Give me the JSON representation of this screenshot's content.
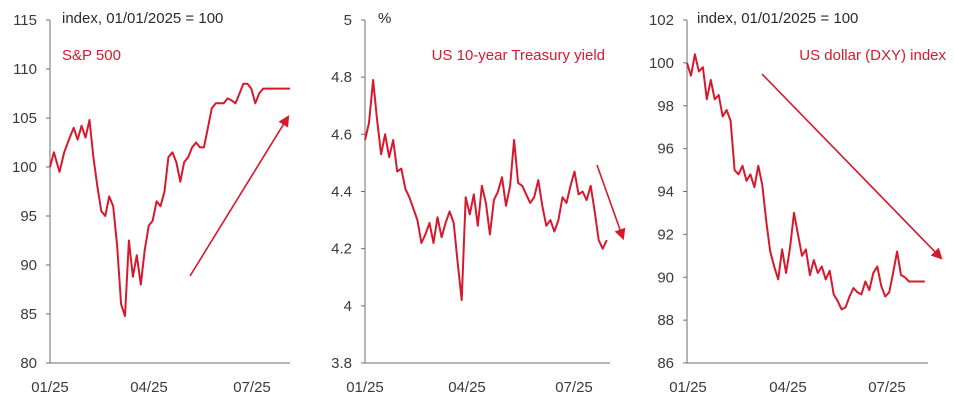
{
  "colors": {
    "series": "#d7192d",
    "axis": "#6e6e6e",
    "text": "#3a3a3a"
  },
  "chart_data": [
    {
      "type": "line",
      "title": "S&P 500",
      "unit_label": "index, 01/01/2025 = 100",
      "ylim": [
        80,
        115
      ],
      "yticks": [
        "115",
        "110",
        "105",
        "100",
        "95",
        "90",
        "85",
        "80"
      ],
      "xticks": [
        "01/25",
        "04/25",
        "07/25"
      ],
      "grid": false,
      "trend_arrow": "up",
      "series": [
        {
          "x": [
            0,
            0.5,
            1.2,
            1.8,
            2.5,
            3,
            3.5,
            4,
            4.5,
            5,
            5.5,
            6,
            6.5,
            7,
            7.5,
            8,
            8.5,
            9,
            9.5,
            10,
            10.5,
            11,
            11.5,
            12,
            12.5,
            13,
            13.5,
            14,
            14.5,
            15,
            15.5,
            16,
            16.5,
            17,
            17.5,
            18,
            18.5,
            19,
            19.5,
            20,
            20.5,
            21,
            21.5,
            22,
            22.5,
            23,
            23.5,
            24,
            24.5,
            25,
            25.5,
            26,
            26.5,
            27,
            27.5,
            28,
            28.5,
            29,
            29.5,
            30,
            30.4
          ],
          "values": [
            100,
            101.5,
            99.5,
            101.5,
            103,
            104,
            102.8,
            104.2,
            103,
            104.8,
            101,
            98,
            95.5,
            95,
            97,
            96,
            92,
            86,
            84.8,
            92.5,
            88.8,
            91,
            88,
            91.5,
            94,
            94.5,
            96.5,
            96,
            97.5,
            101,
            101.5,
            100.5,
            98.5,
            100.5,
            101,
            102,
            102.5,
            102,
            102,
            104,
            106,
            106.5,
            106.5,
            106.5,
            107,
            106.8,
            106.5,
            107.5,
            108.5,
            108.5,
            108,
            106.5,
            107.5,
            108,
            108,
            108,
            108,
            108,
            108,
            108,
            108
          ]
        }
      ]
    },
    {
      "type": "line",
      "title": "US 10-year Treasury yield",
      "unit_label": "%",
      "ylim": [
        3.8,
        5
      ],
      "yticks": [
        "5",
        "4.8",
        "4.6",
        "4.4",
        "4.2",
        "4",
        "3.8"
      ],
      "xticks": [
        "01/25",
        "04/25",
        "07/25"
      ],
      "grid": false,
      "trend_arrow": "down",
      "series": [
        {
          "x": [
            0,
            0.5,
            1,
            1.5,
            2,
            2.5,
            3,
            3.5,
            4,
            4.5,
            5,
            5.5,
            6,
            6.5,
            7,
            7.5,
            8,
            8.5,
            9,
            9.5,
            10,
            10.5,
            11,
            11.5,
            12,
            12.5,
            13,
            13.5,
            14,
            14.5,
            15,
            15.5,
            16,
            16.5,
            17,
            17.5,
            18,
            18.5,
            19,
            19.5,
            20,
            20.5,
            21,
            21.5,
            22,
            22.5,
            23,
            23.5,
            24,
            24.5,
            25,
            25.5,
            26,
            26.5,
            27,
            27.5,
            28,
            28.5,
            29,
            29.5,
            30
          ],
          "values": [
            4.58,
            4.64,
            4.79,
            4.65,
            4.53,
            4.6,
            4.52,
            4.58,
            4.47,
            4.48,
            4.41,
            4.38,
            4.34,
            4.3,
            4.22,
            4.25,
            4.29,
            4.22,
            4.31,
            4.24,
            4.29,
            4.33,
            4.29,
            4.15,
            4.02,
            4.38,
            4.32,
            4.39,
            4.28,
            4.42,
            4.36,
            4.25,
            4.37,
            4.4,
            4.45,
            4.35,
            4.42,
            4.58,
            4.43,
            4.42,
            4.39,
            4.36,
            4.38,
            4.44,
            4.35,
            4.28,
            4.3,
            4.26,
            4.3,
            4.38,
            4.36,
            4.42,
            4.47,
            4.39,
            4.4,
            4.37,
            4.42,
            4.33,
            4.23,
            4.2,
            4.23
          ]
        }
      ]
    },
    {
      "type": "line",
      "title": "US dollar (DXY) index",
      "unit_label": "index, 01/01/2025 = 100",
      "ylim": [
        86,
        102
      ],
      "yticks": [
        "102",
        "100",
        "98",
        "96",
        "94",
        "92",
        "90",
        "88",
        "86"
      ],
      "xticks": [
        "01/25",
        "04/25",
        "07/25"
      ],
      "grid": false,
      "trend_arrow": "down",
      "series": [
        {
          "x": [
            0,
            0.5,
            1,
            1.5,
            2,
            2.5,
            3,
            3.5,
            4,
            4.5,
            5,
            5.5,
            6,
            6.5,
            7,
            7.5,
            8,
            8.5,
            9,
            9.5,
            10,
            10.5,
            11,
            11.5,
            12,
            12.5,
            13,
            13.5,
            14,
            14.5,
            15,
            15.5,
            16,
            16.5,
            17,
            17.5,
            18,
            18.5,
            19,
            19.5,
            20,
            20.5,
            21,
            21.5,
            22,
            22.5,
            23,
            23.5,
            24,
            24.5,
            25,
            25.5,
            26,
            26.5,
            27,
            27.5,
            28,
            28.5,
            29,
            29.5,
            30
          ],
          "values": [
            100,
            99.4,
            100.4,
            99.6,
            99.8,
            98.3,
            99.2,
            98.3,
            98.5,
            97.5,
            97.8,
            97.3,
            95,
            94.8,
            95.2,
            94.5,
            94.8,
            94.2,
            95.2,
            94.3,
            92.6,
            91.2,
            90.5,
            89.9,
            91.3,
            90.2,
            91.4,
            93,
            92,
            91,
            91.3,
            90.1,
            90.8,
            90.2,
            90.5,
            89.9,
            90.3,
            89.2,
            88.9,
            88.5,
            88.6,
            89.1,
            89.5,
            89.3,
            89.2,
            89.8,
            89.4,
            90.2,
            90.5,
            89.6,
            89.1,
            89.3,
            90.2,
            91.2,
            90.1,
            90,
            89.8,
            89.8,
            89.8,
            89.8,
            89.8
          ]
        }
      ]
    }
  ]
}
